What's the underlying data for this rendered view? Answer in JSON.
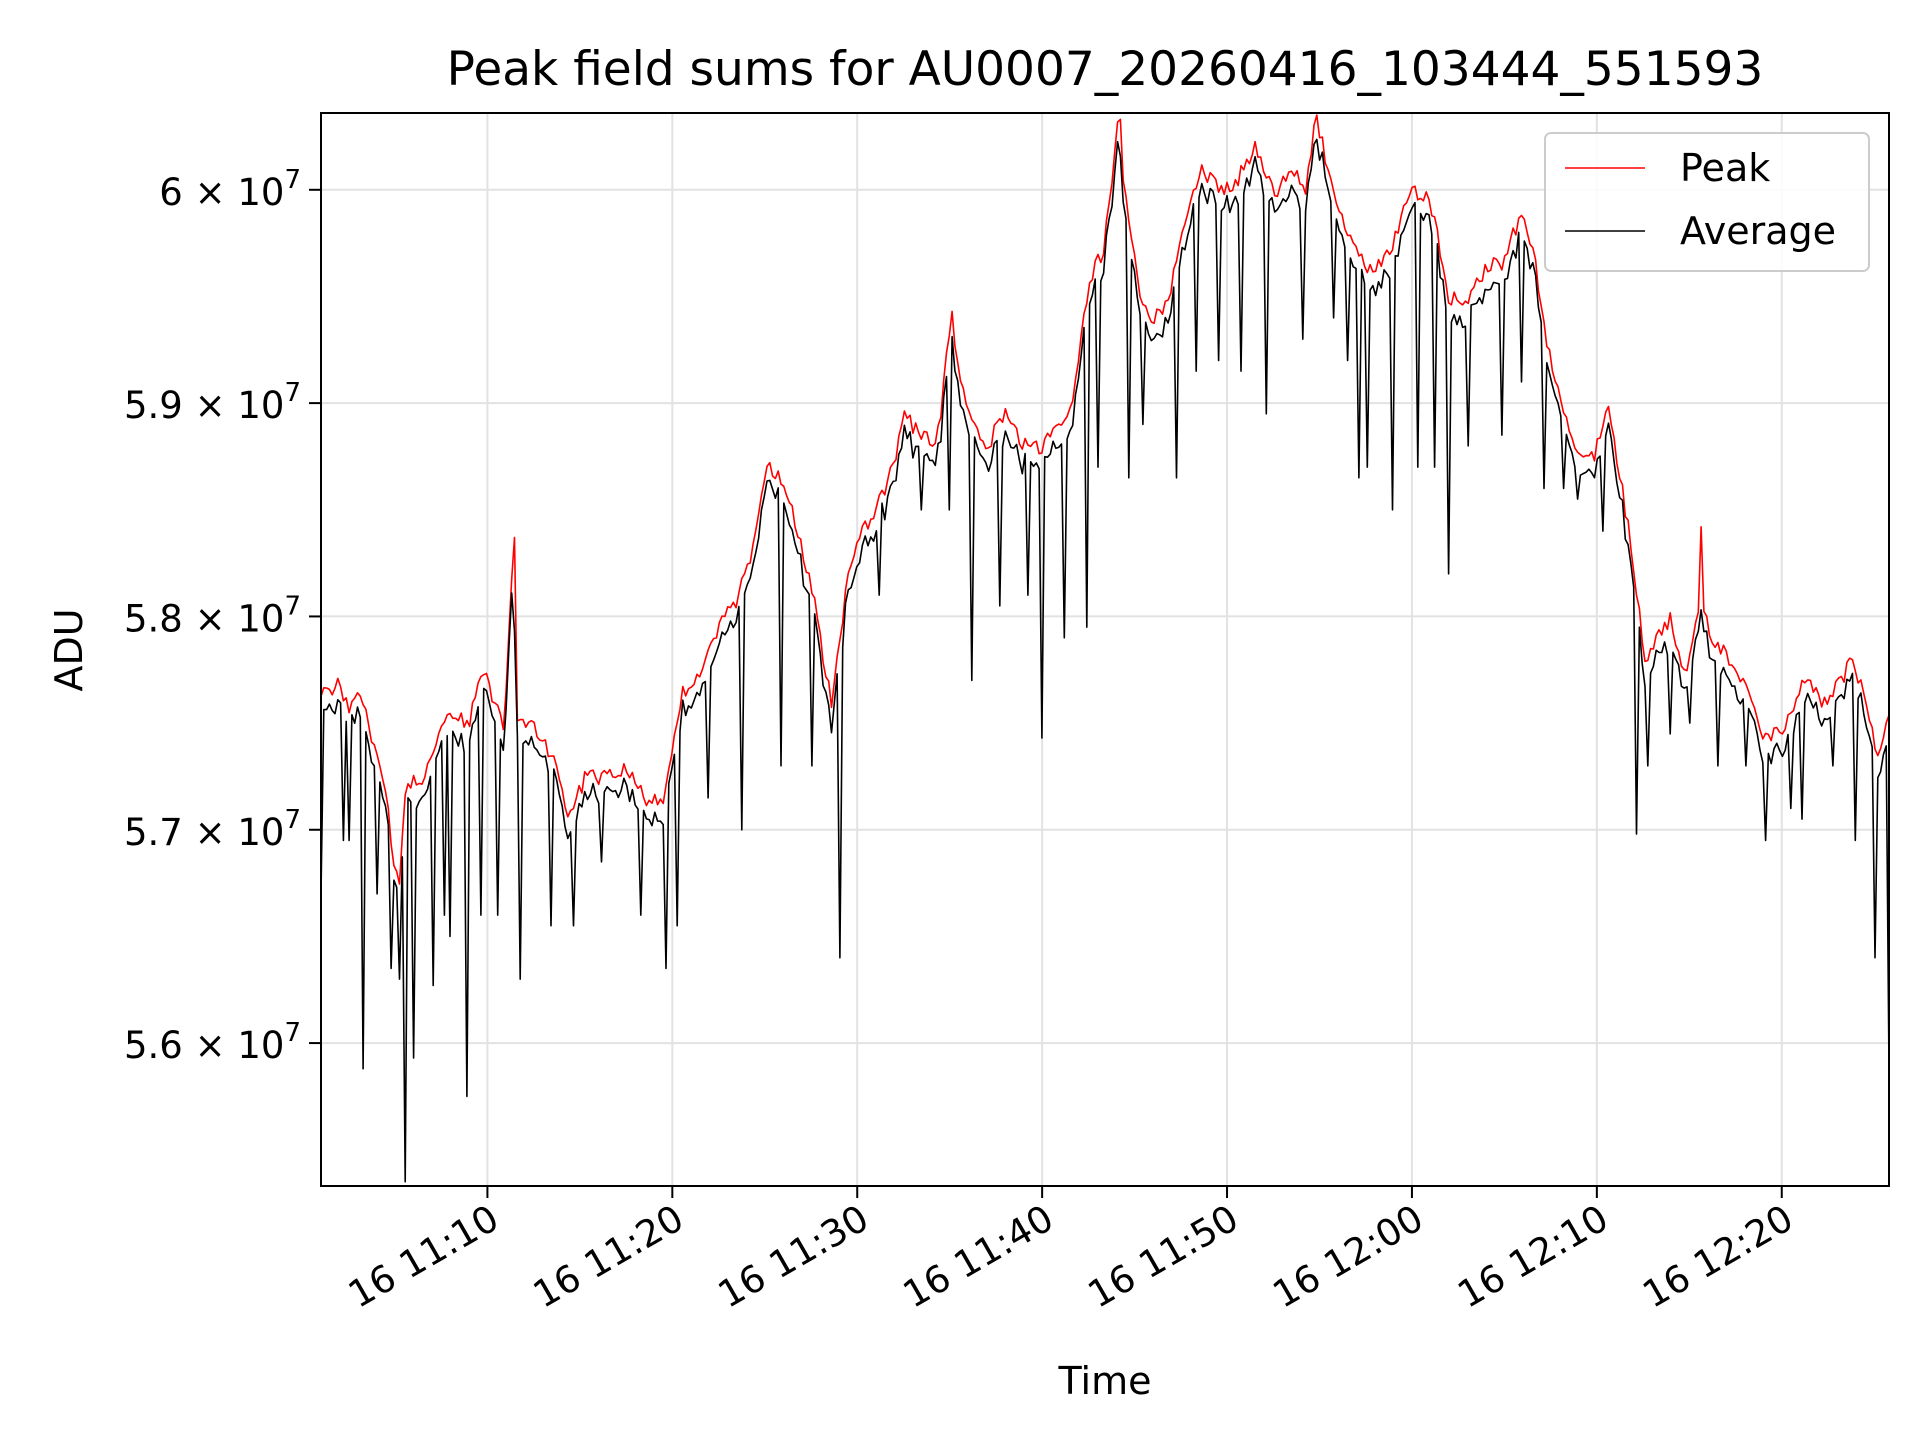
{
  "chart_data": {
    "type": "line",
    "title": "Peak field sums for AU0007_20260416_103444_551593",
    "xlabel": "Time",
    "ylabel": "ADU",
    "x_unit": "minutes after 11:00 on day 16",
    "xlim": [
      1.0,
      85.8
    ],
    "ylim": [
      55330000,
      60360000
    ],
    "grid": true,
    "legend_position": "top-right",
    "x_ticks": [
      {
        "value": 10,
        "label": "16 11:10"
      },
      {
        "value": 20,
        "label": "16 11:20"
      },
      {
        "value": 30,
        "label": "16 11:30"
      },
      {
        "value": 40,
        "label": "16 11:40"
      },
      {
        "value": 50,
        "label": "16 11:50"
      },
      {
        "value": 60,
        "label": "16 12:00"
      },
      {
        "value": 70,
        "label": "16 12:10"
      },
      {
        "value": 80,
        "label": "16 12:20"
      }
    ],
    "y_ticks": [
      {
        "value": 56000000,
        "mantissa": "5.6",
        "exp": "7"
      },
      {
        "value": 57000000,
        "mantissa": "5.7",
        "exp": "7"
      },
      {
        "value": 58000000,
        "mantissa": "5.8",
        "exp": "7"
      },
      {
        "value": 59000000,
        "mantissa": "5.9",
        "exp": "7"
      },
      {
        "value": 60000000,
        "mantissa": "6",
        "exp": "7"
      }
    ],
    "times_of_day": {
      "start": "11:01",
      "end": "12:25:48"
    },
    "series": [
      {
        "name": "Peak",
        "color": "#ff0000",
        "anchors": [
          [
            1.0,
            57620000
          ],
          [
            2.0,
            57700000
          ],
          [
            2.5,
            57550000
          ],
          [
            3.2,
            57650000
          ],
          [
            4.0,
            57350000
          ],
          [
            4.6,
            57100000
          ],
          [
            5.2,
            56700000
          ],
          [
            5.6,
            57200000
          ],
          [
            6.5,
            57250000
          ],
          [
            7.2,
            57400000
          ],
          [
            8.0,
            57550000
          ],
          [
            9.0,
            57500000
          ],
          [
            9.7,
            57750000
          ],
          [
            10.2,
            57650000
          ],
          [
            10.9,
            57450000
          ],
          [
            11.4,
            58350000
          ],
          [
            11.6,
            57500000
          ],
          [
            12.4,
            57500000
          ],
          [
            13.5,
            57350000
          ],
          [
            14.4,
            57050000
          ],
          [
            15.3,
            57250000
          ],
          [
            16.5,
            57250000
          ],
          [
            17.5,
            57300000
          ],
          [
            18.5,
            57150000
          ],
          [
            19.6,
            57150000
          ],
          [
            20.6,
            57650000
          ],
          [
            21.6,
            57750000
          ],
          [
            22.6,
            57950000
          ],
          [
            23.6,
            58100000
          ],
          [
            24.3,
            58300000
          ],
          [
            25.2,
            58700000
          ],
          [
            26.2,
            58600000
          ],
          [
            26.9,
            58350000
          ],
          [
            27.6,
            58100000
          ],
          [
            28.6,
            57600000
          ],
          [
            29.6,
            58250000
          ],
          [
            30.6,
            58450000
          ],
          [
            31.6,
            58600000
          ],
          [
            32.6,
            58950000
          ],
          [
            33.3,
            58850000
          ],
          [
            34.3,
            58800000
          ],
          [
            35.1,
            59400000
          ],
          [
            35.8,
            59000000
          ],
          [
            37.0,
            58800000
          ],
          [
            38.0,
            58950000
          ],
          [
            39.0,
            58800000
          ],
          [
            40.0,
            58800000
          ],
          [
            40.6,
            58850000
          ],
          [
            41.6,
            58950000
          ],
          [
            42.6,
            59600000
          ],
          [
            43.3,
            59700000
          ],
          [
            44.1,
            60300000
          ],
          [
            44.6,
            59900000
          ],
          [
            45.3,
            59500000
          ],
          [
            46.0,
            59400000
          ],
          [
            46.9,
            59500000
          ],
          [
            47.8,
            59900000
          ],
          [
            48.7,
            60100000
          ],
          [
            49.6,
            60000000
          ],
          [
            50.6,
            60050000
          ],
          [
            51.6,
            60200000
          ],
          [
            52.6,
            59950000
          ],
          [
            53.4,
            60100000
          ],
          [
            54.3,
            60000000
          ],
          [
            54.8,
            60350000
          ],
          [
            55.6,
            60050000
          ],
          [
            56.4,
            59850000
          ],
          [
            57.4,
            59650000
          ],
          [
            58.4,
            59650000
          ],
          [
            59.2,
            59800000
          ],
          [
            60.0,
            60000000
          ],
          [
            61.0,
            59950000
          ],
          [
            62.0,
            59500000
          ],
          [
            63.0,
            59450000
          ],
          [
            64.0,
            59650000
          ],
          [
            65.0,
            59650000
          ],
          [
            65.9,
            59900000
          ],
          [
            66.6,
            59700000
          ],
          [
            67.3,
            59300000
          ],
          [
            68.1,
            59000000
          ],
          [
            68.9,
            58800000
          ],
          [
            69.9,
            58750000
          ],
          [
            70.5,
            59000000
          ],
          [
            71.2,
            58700000
          ],
          [
            71.9,
            58300000
          ],
          [
            72.6,
            57800000
          ],
          [
            73.3,
            57900000
          ],
          [
            74.0,
            58000000
          ],
          [
            74.8,
            57700000
          ],
          [
            75.6,
            58100000
          ],
          [
            76.4,
            57850000
          ],
          [
            77.4,
            57800000
          ],
          [
            78.4,
            57600000
          ],
          [
            79.2,
            57400000
          ],
          [
            80.2,
            57500000
          ],
          [
            81.2,
            57700000
          ],
          [
            82.2,
            57600000
          ],
          [
            83.2,
            57700000
          ],
          [
            83.8,
            57800000
          ],
          [
            84.6,
            57600000
          ],
          [
            85.2,
            57350000
          ],
          [
            85.8,
            57550000
          ]
        ],
        "spikes": [
          [
            11.4,
            58370000
          ],
          [
            35.1,
            59430000
          ],
          [
            44.2,
            60330000
          ],
          [
            54.9,
            60350000
          ],
          [
            75.6,
            58420000
          ]
        ],
        "jitter": 40000
      },
      {
        "name": "Average",
        "color": "#000000",
        "follows": "Peak",
        "offset_below": 60000,
        "dips": [
          [
            1.0,
            56700000
          ],
          [
            2.2,
            56950000
          ],
          [
            2.5,
            56950000
          ],
          [
            3.2,
            55880000
          ],
          [
            4.1,
            56700000
          ],
          [
            4.8,
            56350000
          ],
          [
            5.2,
            56300000
          ],
          [
            5.6,
            55350000
          ],
          [
            6.0,
            55930000
          ],
          [
            7.0,
            56270000
          ],
          [
            7.6,
            56600000
          ],
          [
            8.0,
            56500000
          ],
          [
            8.9,
            55750000
          ],
          [
            9.6,
            56600000
          ],
          [
            10.5,
            56600000
          ],
          [
            11.8,
            56300000
          ],
          [
            13.5,
            56550000
          ],
          [
            14.6,
            56550000
          ],
          [
            16.2,
            56850000
          ],
          [
            18.3,
            56600000
          ],
          [
            19.6,
            56350000
          ],
          [
            20.2,
            56550000
          ],
          [
            22.0,
            57150000
          ],
          [
            23.7,
            57000000
          ],
          [
            25.9,
            57300000
          ],
          [
            27.6,
            57300000
          ],
          [
            29.0,
            56400000
          ],
          [
            31.2,
            58100000
          ],
          [
            33.5,
            58500000
          ],
          [
            35.0,
            58500000
          ],
          [
            36.2,
            57700000
          ],
          [
            37.7,
            58050000
          ],
          [
            39.2,
            58100000
          ],
          [
            40.0,
            57430000
          ],
          [
            41.2,
            57900000
          ],
          [
            42.4,
            57950000
          ],
          [
            43.0,
            58700000
          ],
          [
            44.7,
            58650000
          ],
          [
            45.5,
            58900000
          ],
          [
            47.2,
            58650000
          ],
          [
            48.3,
            59150000
          ],
          [
            49.5,
            59200000
          ],
          [
            50.7,
            59150000
          ],
          [
            52.1,
            58950000
          ],
          [
            54.1,
            59300000
          ],
          [
            55.7,
            59400000
          ],
          [
            56.5,
            59200000
          ],
          [
            57.1,
            58650000
          ],
          [
            57.6,
            58700000
          ],
          [
            59.0,
            58500000
          ],
          [
            60.3,
            58700000
          ],
          [
            61.2,
            58700000
          ],
          [
            62.0,
            58200000
          ],
          [
            63.1,
            58800000
          ],
          [
            64.9,
            58850000
          ],
          [
            65.9,
            59100000
          ],
          [
            67.2,
            58600000
          ],
          [
            68.2,
            58600000
          ],
          [
            68.9,
            58550000
          ],
          [
            70.3,
            58400000
          ],
          [
            72.2,
            56980000
          ],
          [
            72.8,
            57300000
          ],
          [
            74.0,
            57450000
          ],
          [
            75.0,
            57500000
          ],
          [
            76.6,
            57300000
          ],
          [
            78.1,
            57300000
          ],
          [
            79.2,
            56950000
          ],
          [
            80.5,
            57100000
          ],
          [
            81.1,
            57050000
          ],
          [
            82.8,
            57300000
          ],
          [
            84.0,
            56950000
          ],
          [
            85.0,
            56400000
          ],
          [
            85.8,
            55880000
          ]
        ],
        "jitter": 60000
      }
    ]
  }
}
